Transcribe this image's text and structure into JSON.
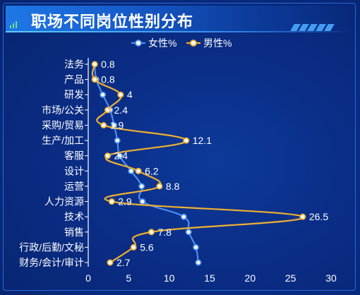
{
  "header": {
    "title": "职场不同岗位性别分布"
  },
  "colors": {
    "female": "#4a90f0",
    "male": "#f0b030",
    "background": "#0a2d86",
    "text": "#ffffff"
  },
  "chart_data": {
    "type": "line",
    "orientation": "horizontal",
    "categories": [
      "法务",
      "产品",
      "研发",
      "市场/公关",
      "采购/贸易",
      "生产/加工",
      "客服",
      "设计",
      "运营",
      "人力资源",
      "技术",
      "销售",
      "行政/后勤/文秘",
      "财务/会计/审计"
    ],
    "series": [
      {
        "name": "女性%",
        "values": [
          0.8,
          1.0,
          1.8,
          2.7,
          3.2,
          3.6,
          3.9,
          5.3,
          6.6,
          6.7,
          11.8,
          12.4,
          13.3,
          13.6
        ],
        "color": "#4a90f0"
      },
      {
        "name": "男性%",
        "values": [
          0.8,
          0.8,
          4,
          2.4,
          1.9,
          12.1,
          2.4,
          6.2,
          8.8,
          2.9,
          26.5,
          7.8,
          5.6,
          2.7
        ],
        "color": "#f0b030"
      }
    ],
    "data_labels": [
      "0.8",
      "0.8",
      "4",
      "2.4",
      "1.9",
      "12.1",
      "2.4",
      "6.2",
      "8.8",
      "2.9",
      "26.5",
      "7.8",
      "5.6",
      "2.7"
    ],
    "xlim": [
      0,
      30
    ],
    "xticks": [
      "0",
      "5",
      "10",
      "15",
      "20",
      "25",
      "30"
    ],
    "legend": {
      "position": "top-center",
      "items": [
        "女性%",
        "男性%"
      ]
    }
  }
}
